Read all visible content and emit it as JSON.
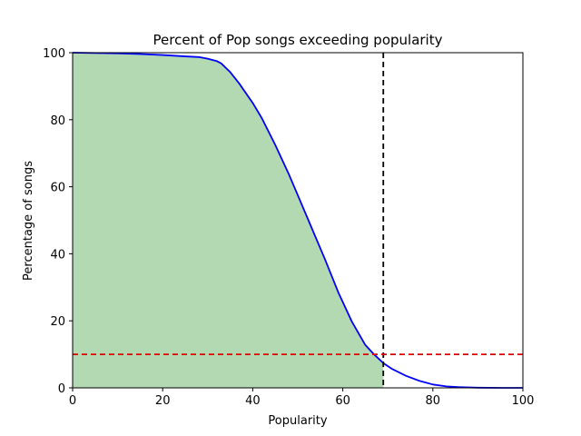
{
  "chart_data": {
    "type": "area",
    "title": "Percent of Pop songs exceeding popularity",
    "xlabel": "Popularity",
    "ylabel": "Percentage of songs",
    "xlim": [
      0,
      100
    ],
    "ylim": [
      0,
      100
    ],
    "xticks": [
      "0",
      "20",
      "40",
      "60",
      "80",
      "100"
    ],
    "yticks": [
      "0",
      "20",
      "40",
      "60",
      "80",
      "100"
    ],
    "grid": false,
    "series": [
      {
        "x": [
          0,
          5,
          10,
          15,
          20,
          25,
          28,
          30,
          32,
          33,
          35,
          37,
          40,
          42,
          45,
          48,
          50,
          53,
          56,
          59,
          62,
          65,
          67,
          69,
          71,
          74,
          77,
          80,
          83,
          86,
          90,
          95,
          100
        ],
        "y": [
          100,
          99.9,
          99.8,
          99.6,
          99.3,
          98.9,
          98.7,
          98.2,
          97.5,
          96.8,
          94.2,
          90.8,
          85.0,
          80.5,
          72.5,
          63.8,
          57.5,
          48.0,
          38.5,
          28.5,
          19.8,
          12.8,
          9.9,
          7.4,
          5.6,
          3.6,
          2.1,
          1.0,
          0.45,
          0.2,
          0.05,
          0.01,
          0
        ],
        "color": "#0000ff",
        "fill_color": "#008000",
        "fill_opacity": 0.3,
        "fill_until_x": 69
      }
    ],
    "reference_lines": [
      {
        "orientation": "vertical",
        "value": 69,
        "color": "#000000",
        "style": "dashed"
      },
      {
        "orientation": "horizontal",
        "value": 10,
        "color": "#dd0000",
        "style": "dashed"
      }
    ]
  }
}
